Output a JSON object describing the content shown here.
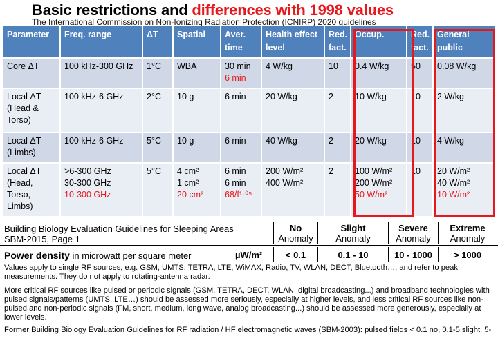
{
  "title": {
    "black": "Basic restrictions and ",
    "red": "differences with 1998 values"
  },
  "subtitle": "The International Commission on Non-Ionizing Radiation Protection (ICNIRP) 2020 guidelines",
  "icnirp_table": {
    "headers": [
      "Parameter",
      "Freq. range",
      "ΔT",
      "Spatial",
      "Aver. time",
      "Health effect level",
      "Red. fact.",
      "Occup.",
      "Red. fact.",
      "General public"
    ],
    "rows": [
      {
        "param": "Core ΔT",
        "freq": [
          "100 kHz-300 GHz"
        ],
        "dt": "1°C",
        "spatial": [
          "WBA"
        ],
        "spatial_red": "",
        "aver": [
          "30 min"
        ],
        "aver_red": "6 min",
        "health": [
          "4 W/kg"
        ],
        "red1": "10",
        "occup": [
          "0.4 W/kg"
        ],
        "occup_red": "",
        "red2": "50",
        "general": [
          "0.08 W/kg"
        ],
        "general_red": ""
      },
      {
        "param": "Local ΔT (Head & Torso)",
        "freq": [
          "100 kHz-6 GHz"
        ],
        "dt": "2°C",
        "spatial": [
          "10 g"
        ],
        "spatial_red": "",
        "aver": [
          "6 min"
        ],
        "aver_red": "",
        "health": [
          "20 W/kg"
        ],
        "red1": "2",
        "occup": [
          "10 W/kg"
        ],
        "occup_red": "",
        "red2": "10",
        "general": [
          "2 W/kg"
        ],
        "general_red": ""
      },
      {
        "param": "Local ΔT (Limbs)",
        "freq": [
          "100 kHz-6 GHz"
        ],
        "dt": "5°C",
        "spatial": [
          "10 g"
        ],
        "spatial_red": "",
        "aver": [
          "6 min"
        ],
        "aver_red": "",
        "health": [
          "40 W/kg"
        ],
        "red1": "2",
        "occup": [
          "20 W/kg"
        ],
        "occup_red": "",
        "red2": "10",
        "general": [
          "4 W/kg"
        ],
        "general_red": ""
      },
      {
        "param": "Local ΔT (Head, Torso, Limbs)",
        "freq": [
          ">6-300 GHz",
          "30-300 GHz"
        ],
        "freq_red": "10-300 GHz",
        "dt": "5°C",
        "spatial": [
          "4 cm²",
          "1 cm²"
        ],
        "spatial_red": "20 cm²",
        "aver": [
          "6 min",
          "6 min"
        ],
        "aver_red": "68/f¹·⁰⁵",
        "health": [
          "200 W/m²",
          "400 W/m²"
        ],
        "red1": "2",
        "occup": [
          "100 W/m²",
          "200 W/m²"
        ],
        "occup_red": "50 W/m²",
        "red2": "10",
        "general": [
          "20 W/m²",
          "40 W/m²"
        ],
        "general_red": "10 W/m²"
      }
    ]
  },
  "building_biology": {
    "title_line1": "Building Biology Evaluation Guidelines for Sleeping Areas",
    "title_line2": "SBM-2015, Page 1",
    "columns": [
      {
        "name": "No",
        "sub": "Anomaly"
      },
      {
        "name": "Slight",
        "sub": "Anomaly"
      },
      {
        "name": "Severe",
        "sub": "Anomaly"
      },
      {
        "name": "Extreme",
        "sub": "Anomaly"
      }
    ],
    "power_density_label": "Power density",
    "power_density_desc": "in microwatt per square meter",
    "unit": "µW/m²",
    "values": [
      "< 0.1",
      "0.1 - 10",
      "10 - 1000",
      "> 1000"
    ],
    "para1": "Values apply to single RF sources, e.g. GSM, UMTS, TETRA, LTE, WiMAX, Radio, TV, WLAN, DECT, Bluetooth…, and refer to peak measurements. They do not apply to rotating-antenna radar.",
    "para2": "More critical RF sources like pulsed or periodic signals (GSM, TETRA, DECT, WLAN, digital broadcasting...) and broadband technologies with pulsed signals/patterns (UMTS, LTE…) should be assessed more seriously, especially at higher levels, and less critical RF sources like non-pulsed and non-periodic signals (FM, short, medium, long wave, analog broadcasting...) should be assessed more generously, especially at lower levels.",
    "para3": "Former Building Biology Evaluation Guidelines for RF radiation / HF electromagnetic waves (SBM-2003): pulsed fields < 0.1 no, 0.1-5 slight, 5-"
  },
  "colors": {
    "accent_red": "#e8171c",
    "header_blue": "#4f81bd",
    "row_dark": "#d0d8e8",
    "row_light": "#e9edf4"
  }
}
